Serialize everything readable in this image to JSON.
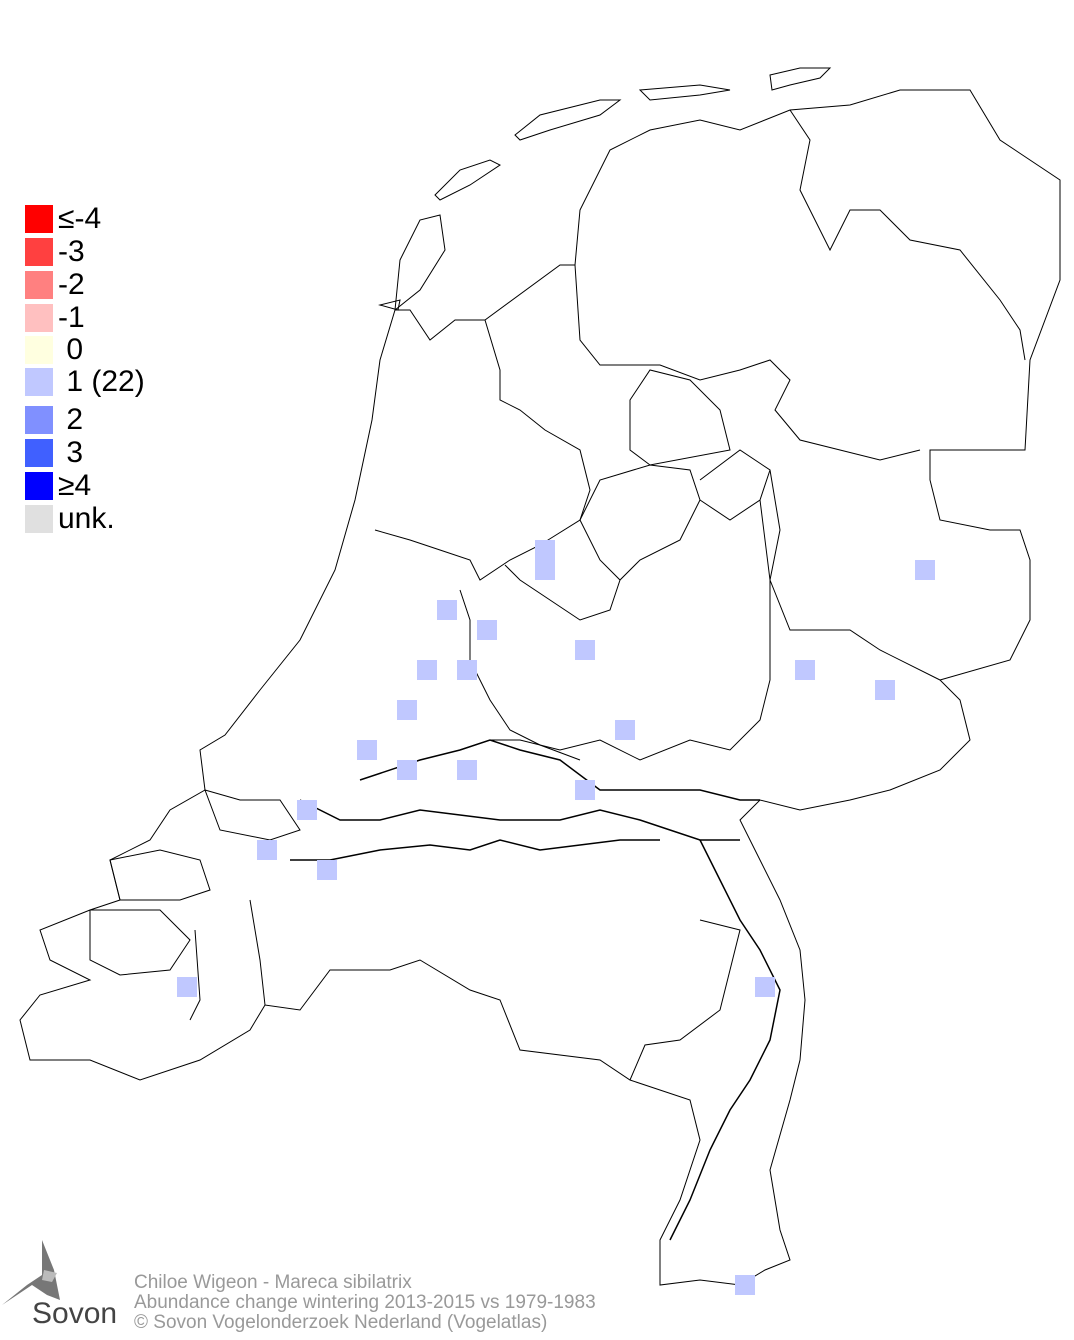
{
  "legend": [
    {
      "label": "≤-4",
      "color": "#ff0000"
    },
    {
      "label": "-3",
      "color": "#ff4040"
    },
    {
      "label": "-2",
      "color": "#ff8080"
    },
    {
      "label": "-1",
      "color": "#ffc0c0"
    },
    {
      "label": " 0",
      "color": "#ffffe0"
    },
    {
      "label": " 1 (22)",
      "color": "#c0c8ff"
    },
    {
      "label": " 2",
      "color": "#8090ff"
    },
    {
      "label": " 3",
      "color": "#4060ff"
    },
    {
      "label": "≥4",
      "color": "#0000ff"
    },
    {
      "label": "unk.",
      "color": "#e0e0e0"
    }
  ],
  "cell_class_shown": "1",
  "cell_color": "#c0c8ff",
  "footer": {
    "line1": "Chiloe Wigeon - Mareca sibilatrix",
    "line2": "Abundance change wintering  2013-2015 vs 1979-1983",
    "line3": "© Sovon Vogelonderzoek Nederland (Vogelatlas)"
  },
  "logo": {
    "text": "Sovon"
  }
}
